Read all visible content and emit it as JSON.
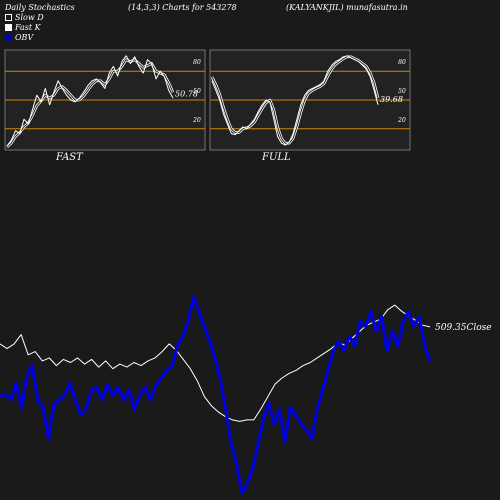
{
  "header": {
    "left": "Daily Stochastics",
    "center": "(14,3,3) Charts for 543278",
    "right": "(KALYANKJIL) munafasutra.in"
  },
  "legend": [
    {
      "label": "Slow  D",
      "swatch": "outline"
    },
    {
      "label": "Fast K",
      "swatch": "white"
    },
    {
      "label": "OBV",
      "swatch": "blue"
    }
  ],
  "colors": {
    "background": "#1a1a1a",
    "panel": "#222222",
    "level_line": "#cc8800",
    "price_line": "#ffffff",
    "obv_line": "#0000dd"
  },
  "chart_data": [
    {
      "type": "line",
      "name": "fast-stochastics",
      "panel_label": "FAST",
      "ylim": [
        0,
        100
      ],
      "levels": [
        20,
        50,
        80
      ],
      "level_labels": [
        "20",
        "50",
        "80"
      ],
      "last_value_label": "50.78",
      "series": [
        {
          "name": "Fast K",
          "values": [
            2,
            8,
            18,
            15,
            30,
            25,
            40,
            55,
            48,
            62,
            45,
            58,
            70,
            62,
            55,
            50,
            48,
            52,
            58,
            65,
            70,
            72,
            68,
            62,
            78,
            85,
            75,
            90,
            96,
            88,
            95,
            85,
            78,
            92,
            88,
            72,
            80,
            74,
            60,
            52
          ]
        },
        {
          "name": "Slow D",
          "values": [
            1,
            5,
            12,
            16,
            22,
            26,
            34,
            44,
            49,
            55,
            52,
            55,
            62,
            64,
            60,
            55,
            50,
            50,
            54,
            60,
            66,
            70,
            70,
            66,
            72,
            80,
            80,
            85,
            92,
            90,
            92,
            88,
            84,
            86,
            88,
            80,
            78,
            76,
            68,
            58
          ]
        }
      ]
    },
    {
      "type": "line",
      "name": "full-stochastics",
      "panel_label": "FULL",
      "ylim": [
        0,
        100
      ],
      "levels": [
        20,
        50,
        80
      ],
      "level_labels": [
        "20",
        "50",
        "80"
      ],
      "last_value_label": "39.68",
      "series": [
        {
          "name": "Fast K",
          "values": [
            70,
            60,
            50,
            35,
            25,
            15,
            14,
            18,
            22,
            20,
            25,
            30,
            38,
            45,
            50,
            48,
            30,
            12,
            5,
            3,
            6,
            15,
            30,
            45,
            55,
            60,
            62,
            64,
            66,
            70,
            80,
            86,
            90,
            92,
            95,
            96,
            94,
            92,
            90,
            86,
            82,
            74,
            60,
            45
          ]
        },
        {
          "name": "Slow D",
          "values": [
            74,
            66,
            56,
            42,
            30,
            20,
            16,
            16,
            20,
            21,
            23,
            27,
            34,
            41,
            47,
            50,
            40,
            22,
            10,
            5,
            5,
            10,
            22,
            37,
            50,
            57,
            60,
            62,
            64,
            67,
            75,
            82,
            87,
            90,
            93,
            95,
            95,
            93,
            91,
            88,
            85,
            78,
            68,
            52
          ]
        }
      ]
    },
    {
      "type": "line",
      "name": "price-obv",
      "last_value_label": "509.35Close",
      "series": [
        {
          "name": "Close",
          "values": [
            62,
            59,
            62,
            68,
            55,
            57,
            51,
            53,
            48,
            52,
            50,
            53,
            49,
            52,
            47,
            51,
            46,
            49,
            47,
            50,
            48,
            51,
            53,
            57,
            62,
            58,
            52,
            46,
            38,
            28,
            22,
            18,
            15,
            13,
            12,
            13,
            13,
            20,
            28,
            36,
            40,
            43,
            45,
            48,
            50,
            53,
            56,
            59,
            63,
            61,
            66,
            70,
            74,
            76,
            78,
            84,
            87,
            83,
            80,
            77,
            74,
            73
          ]
        },
        {
          "name": "OBV",
          "values": [
            40,
            40,
            38,
            45,
            35,
            48,
            52,
            38,
            35,
            22,
            36,
            38,
            40,
            45,
            38,
            32,
            34,
            42,
            43,
            38,
            44,
            40,
            43,
            38,
            42,
            34,
            40,
            43,
            38,
            44,
            47,
            50,
            52,
            60,
            64,
            70,
            80,
            74,
            68,
            62,
            55,
            46,
            34,
            20,
            12,
            0,
            4,
            10,
            20,
            30,
            37,
            28,
            34,
            21,
            35,
            32,
            28,
            26,
            22,
            34,
            42,
            50,
            58,
            62,
            58,
            64,
            60,
            70,
            68,
            74,
            66,
            72,
            58,
            66,
            60,
            70,
            74,
            68,
            72,
            60,
            54
          ]
        }
      ]
    }
  ]
}
